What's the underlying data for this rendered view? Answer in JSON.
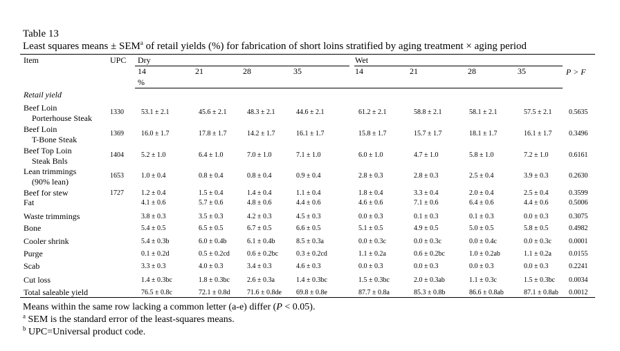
{
  "caption": {
    "table_no": "Table 13",
    "title_a": "Least squares means ± SEM",
    "title_sup": "a",
    "title_b": " of retail yields (%) for fabrication of short loins stratified by aging treatment × aging period"
  },
  "header": {
    "item": "Item",
    "upc": "UPC",
    "dry": "Dry",
    "wet": "Wet",
    "pval": "P > F",
    "unit": "%",
    "dry_periods": [
      "14",
      "21",
      "28",
      "35"
    ],
    "wet_periods": [
      "14",
      "21",
      "28",
      "35"
    ]
  },
  "section_label": "Retail yield",
  "rows": [
    {
      "item": "Beef Loin",
      "item2": "Porterhouse Steak",
      "upc": "1330",
      "dry": [
        "53.1 ± 2.1",
        "45.6 ± 2.1",
        "48.3 ± 2.1",
        "44.6 ± 2.1"
      ],
      "wet": [
        "61.2 ± 2.1",
        "58.8 ± 2.1",
        "58.1 ± 2.1",
        "57.5 ± 2.1"
      ],
      "p": "0.5635"
    },
    {
      "item": "Beef Loin",
      "item2": "T-Bone Steak",
      "upc": "1369",
      "dry": [
        "16.0 ± 1.7",
        "17.8 ± 1.7",
        "14.2 ± 1.7",
        "16.1 ± 1.7"
      ],
      "wet": [
        "15.8 ± 1.7",
        "15.7 ± 1.7",
        "18.1 ± 1.7",
        "16.1 ± 1.7"
      ],
      "p": "0.3496"
    },
    {
      "item": "Beef Top Loin",
      "item2": "Steak Bnls",
      "upc": "1404",
      "dry": [
        "5.2 ± 1.0",
        "6.4 ± 1.0",
        "7.0 ± 1.0",
        "7.1 ± 1.0"
      ],
      "wet": [
        "6.0 ± 1.0",
        "4.7 ± 1.0",
        "5.8 ± 1.0",
        "7.2 ± 1.0"
      ],
      "p": "0.6161"
    },
    {
      "item": "Lean trimmings",
      "item2": "(90% lean)",
      "upc": "1653",
      "dry": [
        "1.0 ± 0.4",
        "0.8 ± 0.4",
        "0.8 ± 0.4",
        "0.9 ± 0.4"
      ],
      "wet": [
        "2.8 ± 0.3",
        "2.8 ± 0.3",
        "2.5 ± 0.4",
        "3.9 ± 0.3"
      ],
      "p": "0.2630"
    },
    {
      "item": "Beef for stew",
      "item2": "",
      "upc": "1727",
      "dry": [
        "1.2 ± 0.4",
        "1.5 ± 0.4",
        "1.4 ± 0.4",
        "1.1 ± 0.4"
      ],
      "wet": [
        "1.8 ± 0.4",
        "3.3 ± 0.4",
        "2.0 ± 0.4",
        "2.5 ± 0.4"
      ],
      "p": "0.3599"
    },
    {
      "item": "Fat",
      "item2": "",
      "upc": "",
      "dry": [
        "4.1 ± 0.6",
        "5.7 ± 0.6",
        "4.8 ± 0.6",
        "4.4 ± 0.6"
      ],
      "wet": [
        "4.6 ± 0.6",
        "7.1 ± 0.6",
        "6.4 ± 0.6",
        "4.4 ± 0.6"
      ],
      "p": "0.5006"
    },
    {
      "item": "Waste trimmings",
      "item2": "",
      "upc": "",
      "dry": [
        "3.8 ± 0.3",
        "3.5 ± 0.3",
        "4.2 ± 0.3",
        "4.5 ± 0.3"
      ],
      "wet": [
        "0.0 ± 0.3",
        "0.1 ± 0.3",
        "0.1 ± 0.3",
        "0.0 ± 0.3"
      ],
      "p": "0.3075"
    },
    {
      "item": "Bone",
      "item2": "",
      "upc": "",
      "dry": [
        "5.4 ± 0.5",
        "6.5 ± 0.5",
        "6.7 ± 0.5",
        "6.6 ± 0.5"
      ],
      "wet": [
        "5.1 ± 0.5",
        "4.9 ± 0.5",
        "5.0 ± 0.5",
        "5.8 ± 0.5"
      ],
      "p": "0.4982"
    },
    {
      "item": "Cooler shrink",
      "item2": "",
      "upc": "",
      "dry": [
        "5.4 ± 0.3b",
        "6.0 ± 0.4b",
        "6.1 ± 0.4b",
        "8.5 ± 0.3a"
      ],
      "wet": [
        "0.0 ± 0.3c",
        "0.0 ± 0.3c",
        "0.0 ± 0.4c",
        "0.0 ± 0.3c"
      ],
      "p": "0.0001"
    },
    {
      "item": "Purge",
      "item2": "",
      "upc": "",
      "dry": [
        "0.1 ± 0.2d",
        "0.5 ± 0.2cd",
        "0.6 ± 0.2bc",
        "0.3 ± 0.2cd"
      ],
      "wet": [
        "1.1 ± 0.2a",
        "0.6 ± 0.2bc",
        "1.0 ± 0.2ab",
        "1.1 ± 0.2a"
      ],
      "p": "0.0155"
    },
    {
      "item": "Scab",
      "item2": "",
      "upc": "",
      "dry": [
        "3.3 ± 0.3",
        "4.0 ± 0.3",
        "3.4 ± 0.3",
        "4.6 ± 0.3"
      ],
      "wet": [
        "0.0 ± 0.3",
        "0.0 ± 0.3",
        "0.0 ± 0.3",
        "0.0 ± 0.3"
      ],
      "p": "0.2241"
    },
    {
      "item": "Cut loss",
      "item2": "",
      "upc": "",
      "dry": [
        "1.4 ± 0.3bc",
        "1.8 ± 0.3bc",
        "2.6 ± 0.3a",
        "1.4 ± 0.3bc"
      ],
      "wet": [
        "1.5 ± 0.3bc",
        "2.0 ± 0.3ab",
        "1.1 ± 0.3c",
        "1.5 ± 0.3bc"
      ],
      "p": "0.0034"
    },
    {
      "item": "Total saleable yield",
      "item2": "",
      "upc": "",
      "dry": [
        "76.5 ± 0.8c",
        "72.1 ± 0.8d",
        "71.6 ± 0.8de",
        "69.8 ± 0.8e"
      ],
      "wet": [
        "87.7 ± 0.8a",
        "85.3 ± 0.8b",
        "86.6 ± 0.8ab",
        "87.1 ± 0.8ab"
      ],
      "p": "0.0012"
    }
  ],
  "footnotes": {
    "means_a": "Means within the same row lacking a common letter (a-e) differ (",
    "means_p": "P",
    "means_b": " < 0.05).",
    "a_sup": "a",
    "a_text": " SEM is the standard error of the least-squares means.",
    "b_sup": "b",
    "b_text": " UPC=Universal product code."
  }
}
